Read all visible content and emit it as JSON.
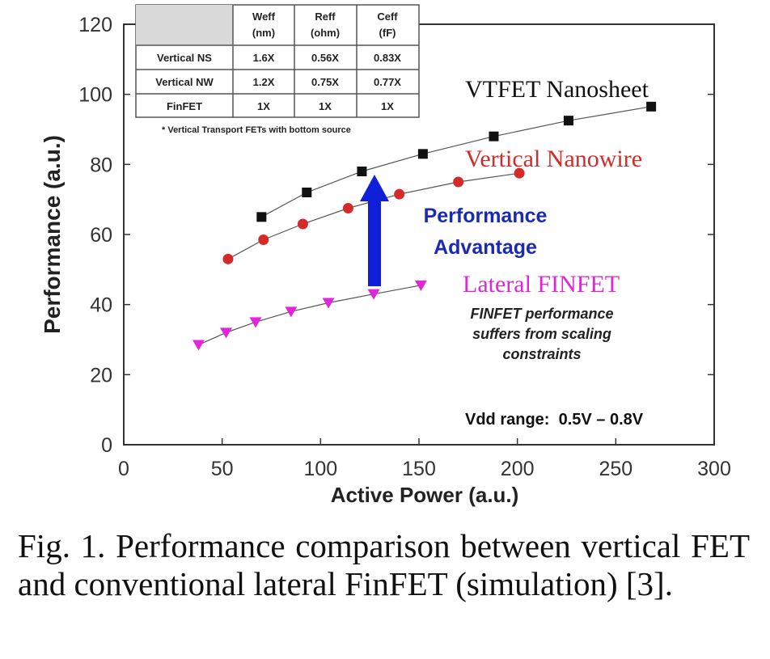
{
  "caption": "Fig. 1. Performance comparison between vertical FET and conventional lateral FinFET (simulation) [3].",
  "chart_data": {
    "type": "line",
    "title": "",
    "xlabel": "Active Power (a.u.)",
    "ylabel": "Performance (a.u.)",
    "xlim": [
      0,
      300
    ],
    "ylim": [
      0,
      120
    ],
    "xticks": [
      0,
      50,
      100,
      150,
      200,
      250,
      300
    ],
    "yticks": [
      0,
      20,
      40,
      60,
      80,
      100,
      120
    ],
    "grid": false,
    "series": [
      {
        "name": "VTFET Nanosheet",
        "color": "#111111",
        "marker": "square",
        "x": [
          70,
          93,
          121,
          152,
          188,
          226,
          268
        ],
        "y": [
          65,
          72,
          78,
          83,
          88,
          92.5,
          96.5
        ]
      },
      {
        "name": "Vertical Nanowire",
        "color": "#d42a2a",
        "marker": "circle",
        "x": [
          53,
          71,
          91,
          114,
          140,
          170,
          201
        ],
        "y": [
          53,
          58.5,
          63,
          67.5,
          71.5,
          75,
          77.5
        ]
      },
      {
        "name": "Lateral FINFET",
        "color": "#e026d8",
        "marker": "triangle-down",
        "x": [
          38,
          52,
          67,
          85,
          104,
          127,
          151
        ],
        "y": [
          28.5,
          32,
          35,
          38,
          40.5,
          43,
          45.5
        ]
      }
    ],
    "annotations": {
      "arrow_label": [
        "Performance",
        "Advantage"
      ],
      "finfet_note": [
        "FINFET performance",
        "suffers from scaling",
        "constraints"
      ],
      "vdd": "Vdd range:  0.5V – 0.8V"
    },
    "table": {
      "headers": [
        [
          "",
          ""
        ],
        [
          "Weff",
          "(nm)"
        ],
        [
          "Reff",
          "(ohm)"
        ],
        [
          "Ceff",
          "(fF)"
        ]
      ],
      "rows": [
        [
          "Vertical NS",
          "1.6X",
          "0.56X",
          "0.83X"
        ],
        [
          "Vertical NW",
          "1.2X",
          "0.75X",
          "0.77X"
        ],
        [
          "FinFET",
          "1X",
          "1X",
          "1X"
        ]
      ],
      "footnote": "* Vertical Transport FETs with bottom source"
    }
  }
}
